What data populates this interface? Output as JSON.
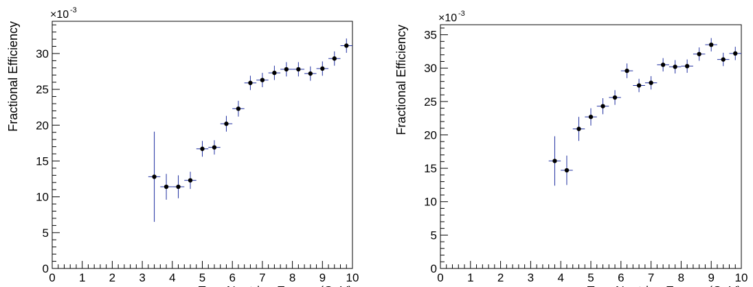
{
  "chart_data": [
    {
      "type": "scatter",
      "xlabel": "True Neutrino Energy (GeV)",
      "ylabel": "Fractional Efficiency",
      "y_multiplier": "×10",
      "y_multiplier_exponent": "-3",
      "xlim": [
        0,
        10
      ],
      "ylim": [
        0,
        34.5
      ],
      "xticks": [
        0,
        1,
        2,
        3,
        4,
        5,
        6,
        7,
        8,
        9,
        10
      ],
      "yticks": [
        0,
        5,
        10,
        15,
        20,
        25,
        30
      ],
      "grid": false,
      "marker_color": "#000000",
      "error_bar_color": "#1f2fa0",
      "x_half_width": 0.2,
      "series": [
        {
          "x": [
            3.4,
            3.8,
            4.2,
            4.6,
            5.0,
            5.4,
            5.8,
            6.2,
            6.6,
            7.0,
            7.4,
            7.8,
            8.2,
            8.6,
            9.0,
            9.4,
            9.8
          ],
          "y": [
            12.8,
            11.4,
            11.4,
            12.3,
            16.7,
            16.9,
            20.2,
            22.3,
            25.9,
            26.3,
            27.3,
            27.8,
            27.8,
            27.2,
            27.9,
            29.3,
            31.1
          ],
          "yerr": [
            6.3,
            1.8,
            1.6,
            1.2,
            1.1,
            1.0,
            1.1,
            1.1,
            1.0,
            1.0,
            1.0,
            1.0,
            1.0,
            1.0,
            1.0,
            1.0,
            1.0
          ]
        }
      ]
    },
    {
      "type": "scatter",
      "xlabel": "True Neutrino Energy (GeV)",
      "ylabel": "Fractional Efficiency",
      "y_multiplier": "×10",
      "y_multiplier_exponent": "-3",
      "xlim": [
        0,
        10
      ],
      "ylim": [
        0,
        36.5
      ],
      "xticks": [
        0,
        1,
        2,
        3,
        4,
        5,
        6,
        7,
        8,
        9,
        10
      ],
      "yticks": [
        0,
        5,
        10,
        15,
        20,
        25,
        30,
        35
      ],
      "grid": false,
      "marker_color": "#000000",
      "error_bar_color": "#1f2fa0",
      "x_half_width": 0.2,
      "series": [
        {
          "x": [
            3.8,
            4.2,
            4.6,
            5.0,
            5.4,
            5.8,
            6.2,
            6.6,
            7.0,
            7.4,
            7.8,
            8.2,
            8.6,
            9.0,
            9.4,
            9.8
          ],
          "y": [
            16.1,
            14.7,
            20.9,
            22.7,
            24.3,
            25.6,
            29.6,
            27.4,
            27.8,
            30.5,
            30.2,
            30.3,
            32.1,
            33.5,
            31.3,
            32.2
          ],
          "yerr": [
            3.7,
            2.2,
            1.8,
            1.3,
            1.2,
            1.1,
            1.1,
            1.0,
            1.0,
            1.0,
            1.0,
            1.0,
            1.0,
            1.0,
            1.0,
            1.0
          ]
        }
      ]
    }
  ]
}
